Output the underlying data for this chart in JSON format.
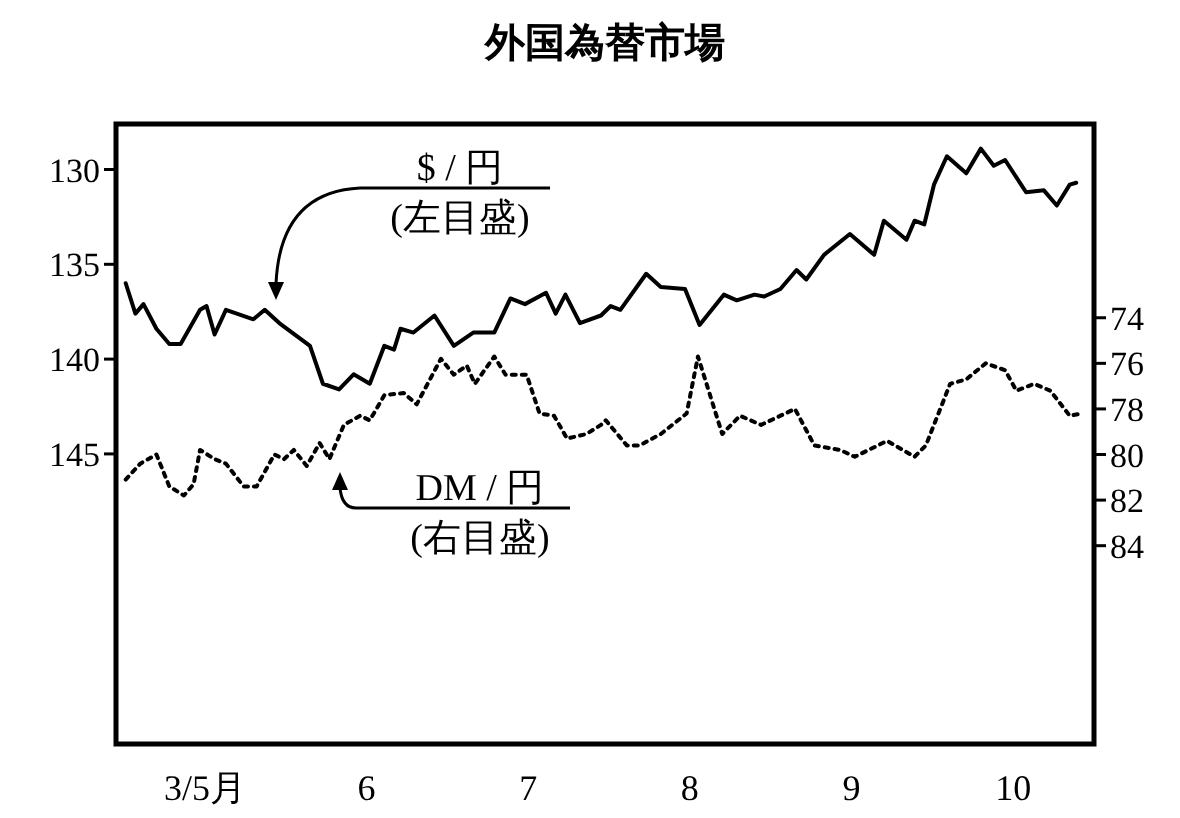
{
  "chart_data": {
    "type": "line",
    "title": "外国為替市場",
    "xlim": [
      4.95,
      11.0
    ],
    "xticks": [
      {
        "value": 5.5,
        "label": "3/5月"
      },
      {
        "value": 6.5,
        "label": "6"
      },
      {
        "value": 7.5,
        "label": "7"
      },
      {
        "value": 8.5,
        "label": "8"
      },
      {
        "value": 9.5,
        "label": "9"
      },
      {
        "value": 10.5,
        "label": "10"
      }
    ],
    "ylim": [
      160.3,
      127.6
    ],
    "yticks": [
      130,
      135,
      140,
      145
    ],
    "y2lim": [
      92.7,
      65.5
    ],
    "y2ticks": [
      74,
      76,
      78,
      80,
      82,
      84
    ],
    "grid": false,
    "series": [
      {
        "color": "#000000",
        "line_style": "solid",
        "x": [
          5.01,
          5.07,
          5.12,
          5.2,
          5.28,
          5.35,
          5.47,
          5.51,
          5.56,
          5.63,
          5.8,
          5.87,
          5.96,
          6.15,
          6.23,
          6.33,
          6.42,
          6.52,
          6.61,
          6.67,
          6.71,
          6.79,
          6.92,
          7.04,
          7.16,
          7.29,
          7.39,
          7.48,
          7.61,
          7.67,
          7.73,
          7.82,
          7.95,
          8.01,
          8.07,
          8.23,
          8.32,
          8.47,
          8.56,
          8.71,
          8.79,
          8.9,
          8.96,
          9.06,
          9.16,
          9.22,
          9.33,
          9.49,
          9.64,
          9.7,
          9.84,
          9.89,
          9.95,
          10.01,
          10.09,
          10.21,
          10.3,
          10.38,
          10.45,
          10.58,
          10.69,
          10.77,
          10.85,
          10.89
        ],
        "values": [
          136.0,
          137.6,
          137.1,
          138.4,
          139.2,
          139.2,
          137.4,
          137.2,
          138.7,
          137.4,
          137.9,
          137.4,
          138.1,
          139.3,
          141.3,
          141.6,
          140.8,
          141.3,
          139.3,
          139.5,
          138.4,
          138.6,
          137.7,
          139.3,
          138.6,
          138.6,
          136.8,
          137.1,
          136.5,
          137.6,
          136.6,
          138.1,
          137.7,
          137.2,
          137.4,
          135.5,
          136.2,
          136.3,
          138.2,
          136.6,
          136.9,
          136.6,
          136.7,
          136.3,
          135.3,
          135.8,
          134.5,
          133.4,
          134.5,
          132.7,
          133.7,
          132.7,
          132.9,
          130.8,
          129.3,
          130.2,
          128.9,
          129.8,
          129.5,
          131.2,
          131.1,
          131.9,
          130.8,
          130.7
        ]
      },
      {
        "color": "#000000",
        "line_style": "dotted",
        "axis": "y2",
        "x": [
          5.01,
          5.1,
          5.2,
          5.28,
          5.37,
          5.43,
          5.47,
          5.56,
          5.63,
          5.74,
          5.82,
          5.93,
          5.99,
          6.05,
          6.13,
          6.21,
          6.27,
          6.36,
          6.46,
          6.52,
          6.61,
          6.73,
          6.81,
          6.96,
          7.04,
          7.12,
          7.17,
          7.29,
          7.36,
          7.49,
          7.57,
          7.66,
          7.74,
          7.86,
          7.95,
          7.98,
          8.11,
          8.19,
          8.32,
          8.48,
          8.55,
          8.7,
          8.81,
          8.94,
          9.15,
          9.27,
          9.43,
          9.52,
          9.72,
          9.89,
          9.96,
          10.11,
          10.21,
          10.33,
          10.45,
          10.52,
          10.63,
          10.73,
          10.85,
          10.92
        ],
        "values": [
          81.1,
          80.4,
          80.0,
          81.4,
          81.8,
          81.3,
          79.8,
          80.2,
          80.4,
          81.4,
          81.4,
          80.0,
          80.2,
          79.8,
          80.5,
          79.5,
          80.2,
          78.7,
          78.3,
          78.5,
          77.4,
          77.3,
          77.8,
          75.8,
          76.5,
          76.1,
          76.9,
          75.7,
          76.5,
          76.5,
          78.2,
          78.3,
          79.3,
          79.1,
          78.7,
          78.5,
          79.6,
          79.6,
          79.1,
          78.2,
          75.7,
          79.1,
          78.3,
          78.7,
          78.0,
          79.6,
          79.8,
          80.1,
          79.4,
          80.1,
          79.6,
          76.9,
          76.7,
          76.0,
          76.3,
          77.2,
          76.9,
          77.2,
          78.3,
          78.2
        ]
      }
    ],
    "annotations": [
      "$ / 円\n(左目盛)",
      "DM / 円\n(右目盛)"
    ]
  }
}
